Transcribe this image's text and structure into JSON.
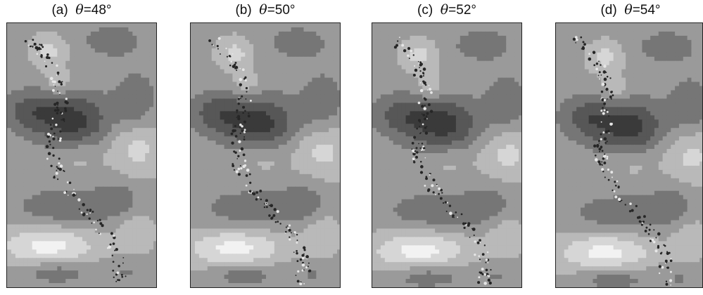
{
  "figure": {
    "panels": [
      {
        "id": "a",
        "prefix": "(a)",
        "theta_symbol": "θ",
        "value_text": "=48°",
        "angle_deg": 48
      },
      {
        "id": "b",
        "prefix": "(b)",
        "theta_symbol": "θ",
        "value_text": "=50°",
        "angle_deg": 50
      },
      {
        "id": "c",
        "prefix": "(c)",
        "theta_symbol": "θ",
        "value_text": "=52°",
        "angle_deg": 52
      },
      {
        "id": "d",
        "prefix": "(d)",
        "theta_symbol": "θ",
        "value_text": "=54°",
        "angle_deg": 54
      }
    ]
  }
}
